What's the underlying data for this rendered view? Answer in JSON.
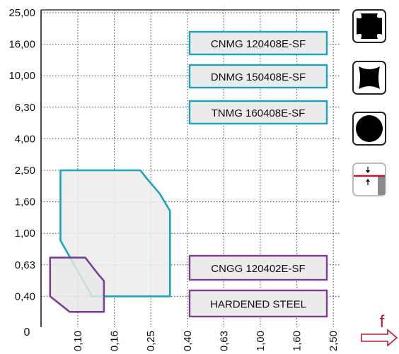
{
  "chart_data": {
    "type": "area",
    "y_ticks": [
      "25,00",
      "16,00",
      "10,00",
      "6,30",
      "4,00",
      "2,50",
      "1,60",
      "1,00",
      "0,63",
      "0,40"
    ],
    "x_ticks": [
      "0,10",
      "0,16",
      "0,25",
      "0,40",
      "0,63",
      "1,00",
      "1,60",
      "2,50"
    ],
    "origin_label": "0",
    "x_axis_symbol": "f",
    "grid": true,
    "regions": [
      {
        "name": "CNMG 120408E-SF",
        "color": "#1aa3bf",
        "fill": "#ececec",
        "points": [
          [
            0.08,
            2.5
          ],
          [
            0.22,
            2.5
          ],
          [
            0.24,
            2.2
          ],
          [
            0.28,
            1.8
          ],
          [
            0.32,
            1.4
          ],
          [
            0.32,
            0.4
          ],
          [
            0.12,
            0.4
          ],
          [
            0.08,
            0.9
          ]
        ]
      },
      {
        "name": "CNGG 120402E-SF",
        "color": "#7b3f98",
        "fill": "#e8e8e8",
        "points": [
          [
            0.07,
            0.7
          ],
          [
            0.11,
            0.7
          ],
          [
            0.13,
            0.55
          ],
          [
            0.14,
            0.5
          ],
          [
            0.14,
            0.32
          ],
          [
            0.09,
            0.32
          ],
          [
            0.07,
            0.4
          ]
        ]
      }
    ],
    "labels": [
      {
        "text": "CNMG 120408E-SF",
        "color": "#1aa3bf"
      },
      {
        "text": "DNMG 150408E-SF",
        "color": "#1aa3bf"
      },
      {
        "text": "TNMG 160408E-SF",
        "color": "#1aa3bf"
      },
      {
        "text": "CNGG 120402E-SF",
        "color": "#7b3f98"
      },
      {
        "text": "HARDENED STEEL",
        "color": "#7b3f98"
      }
    ]
  },
  "insert_icons": [
    "cnmg-insert-icon",
    "dnmg-insert-icon",
    "circular-insert-icon",
    "cutting-depth-icon"
  ],
  "colors": {
    "accent_red": "#c0192a",
    "grid": "#555555"
  }
}
